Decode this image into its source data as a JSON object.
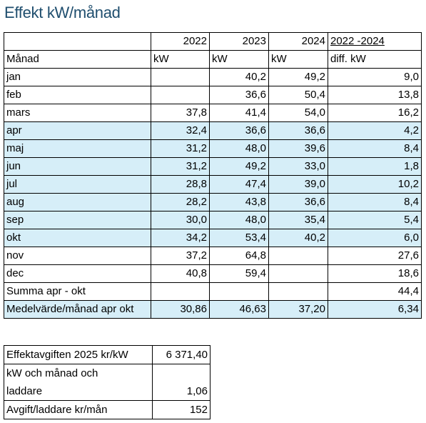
{
  "title": "Effekt kW/månad",
  "years_row": [
    "",
    "2022",
    "2023",
    "2024",
    "2022 -2024"
  ],
  "unit_row": [
    "Månad",
    "kW",
    "kW",
    "kW",
    "diff. kW"
  ],
  "rows": [
    {
      "month": "jan",
      "v2022": "",
      "v2023": "40,2",
      "v2024": "49,2",
      "diff": "9,0",
      "hl": false
    },
    {
      "month": "feb",
      "v2022": "",
      "v2023": "36,6",
      "v2024": "50,4",
      "diff": "13,8",
      "hl": false
    },
    {
      "month": "mars",
      "v2022": "37,8",
      "v2023": "41,4",
      "v2024": "54,0",
      "diff": "16,2",
      "hl": false
    },
    {
      "month": "apr",
      "v2022": "32,4",
      "v2023": "36,6",
      "v2024": "36,6",
      "diff": "4,2",
      "hl": true
    },
    {
      "month": "maj",
      "v2022": "31,2",
      "v2023": "48,0",
      "v2024": "39,6",
      "diff": "8,4",
      "hl": true
    },
    {
      "month": "jun",
      "v2022": "31,2",
      "v2023": "49,2",
      "v2024": "33,0",
      "diff": "1,8",
      "hl": true
    },
    {
      "month": "jul",
      "v2022": "28,8",
      "v2023": "47,4",
      "v2024": "39,0",
      "diff": "10,2",
      "hl": true
    },
    {
      "month": "aug",
      "v2022": "28,2",
      "v2023": "43,8",
      "v2024": "36,6",
      "diff": "8,4",
      "hl": true
    },
    {
      "month": "sep",
      "v2022": "30,0",
      "v2023": "48,0",
      "v2024": "35,4",
      "diff": "5,4",
      "hl": true
    },
    {
      "month": "okt",
      "v2022": "34,2",
      "v2023": "53,4",
      "v2024": "40,2",
      "diff": "6,0",
      "hl": true
    },
    {
      "month": "nov",
      "v2022": "37,2",
      "v2023": "64,8",
      "v2024": "",
      "diff": "27,6",
      "hl": false
    },
    {
      "month": "dec",
      "v2022": "40,8",
      "v2023": "59,4",
      "v2024": "",
      "diff": "18,6",
      "hl": false
    }
  ],
  "summa": {
    "label": "Summa apr - okt",
    "diff": "44,4"
  },
  "medel": {
    "label": "Medelvärde/månad apr okt",
    "v2022": "30,86",
    "v2023": "46,63",
    "v2024": "37,20",
    "diff": "6,34"
  },
  "fee": {
    "row1_label": "Effektavgiften 2025 kr/kW",
    "row1_value": "6 371,40",
    "row2_label_a": "kW och månad och",
    "row2_label_b": "laddare",
    "row2_value": "1,06",
    "row3_label": "Avgift/laddare kr/mån",
    "row3_value": "152"
  },
  "colors": {
    "title": "#1f4e6e",
    "highlight": "#d6eef8"
  }
}
